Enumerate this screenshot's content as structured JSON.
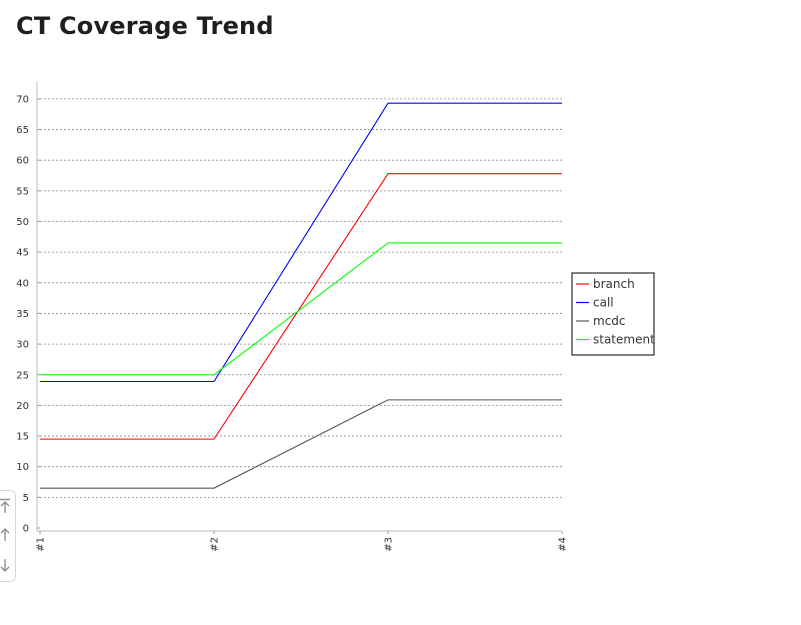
{
  "page": {
    "title": "CT Coverage Trend"
  },
  "chart_data": {
    "type": "line",
    "title": "",
    "xlabel": "",
    "ylabel": "",
    "categories": [
      "#1",
      "#2",
      "#3",
      "#4"
    ],
    "ylim": [
      0,
      72
    ],
    "yticks": [
      0,
      5,
      10,
      15,
      20,
      25,
      30,
      35,
      40,
      45,
      50,
      55,
      60,
      65,
      70
    ],
    "grid": true,
    "legend_position": "right",
    "series": [
      {
        "name": "branch",
        "color": "#ff0000",
        "values": [
          14.5,
          14.5,
          57.8,
          57.8
        ]
      },
      {
        "name": "call",
        "color": "#0000ff",
        "values": [
          23.9,
          23.9,
          69.3,
          69.3
        ]
      },
      {
        "name": "mcdc",
        "color": "#555555",
        "values": [
          6.5,
          6.5,
          20.9,
          20.9
        ]
      },
      {
        "name": "statement",
        "color": "#00ff00",
        "values": [
          25.0,
          25.0,
          46.5,
          46.5
        ]
      }
    ]
  },
  "scroll_controls": {
    "top_icon": "arrow-to-top-icon",
    "up_icon": "arrow-up-icon",
    "down_icon": "arrow-down-icon"
  }
}
